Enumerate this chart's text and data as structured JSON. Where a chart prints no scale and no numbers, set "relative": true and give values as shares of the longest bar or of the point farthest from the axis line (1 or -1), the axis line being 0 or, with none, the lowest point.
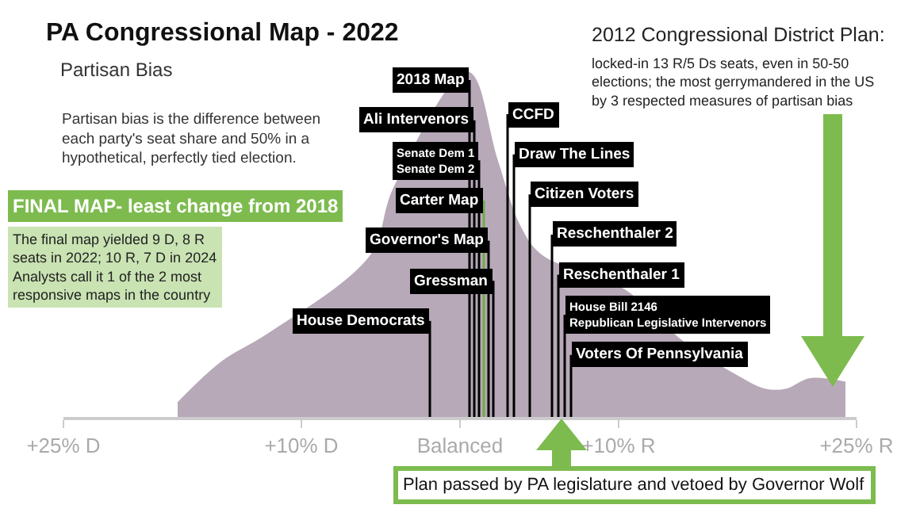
{
  "chart_data": {
    "type": "area",
    "title": "PA Congressional Map - 2022",
    "subtitle": "Partisan Bias",
    "relative": true,
    "x": [
      -17.8,
      -15.0,
      -12.1,
      -8.4,
      -5.6,
      -4.2,
      -2.8,
      -0.9,
      0.5,
      2.3,
      3.7,
      5.1,
      6.5,
      8.4,
      10.3,
      12.1,
      14.0,
      15.9,
      17.8,
      19.2,
      20.6,
      22.0,
      23.4,
      24.3
    ],
    "series": [
      {
        "color": "#b7a9b8",
        "values": [
          0.04,
          0.16,
          0.24,
          null,
          0.47,
          0.66,
          null,
          null,
          1,
          0.75,
          0.56,
          0.47,
          null,
          null,
          0.37,
          null,
          0.22,
          null,
          0.11,
          0.08,
          0.08,
          0.11,
          null,
          0.1
        ]
      }
    ],
    "xlim": [
      -25,
      25
    ],
    "xticks": [
      {
        "value": -25,
        "label": "+25% D"
      },
      {
        "value": -10,
        "label": "+10% D"
      },
      {
        "value": 0,
        "label": "Balanced"
      },
      {
        "value": 10,
        "label": "+10% R"
      },
      {
        "value": 25,
        "label": "+25% R"
      }
    ],
    "ref_lines": [
      {
        "axis": "x",
        "value": 0.6,
        "label": "2018 Map",
        "color": "#000000"
      },
      {
        "axis": "x",
        "value": 0.9,
        "label": "Ali Intervenors",
        "color": "#000000"
      },
      {
        "axis": "x",
        "value": 1.2,
        "label": "Senate Dem 1\nSenate Dem 2",
        "color": "#000000"
      },
      {
        "axis": "x",
        "value": 1.5,
        "label": "Carter Map",
        "color": "#70ad47"
      },
      {
        "axis": "x",
        "value": 1.8,
        "label": "Governor's Map",
        "color": "#000000"
      },
      {
        "axis": "x",
        "value": 2.1,
        "label": "Gressman",
        "color": "#000000"
      },
      {
        "axis": "x",
        "value": -1.9,
        "label": "House Democrats",
        "color": "#000000"
      },
      {
        "axis": "x",
        "value": 3.0,
        "label": "CCFD",
        "color": "#000000"
      },
      {
        "axis": "x",
        "value": 3.4,
        "label": "Draw The Lines",
        "color": "#000000"
      },
      {
        "axis": "x",
        "value": 4.4,
        "label": "Citizen Voters",
        "color": "#000000"
      },
      {
        "axis": "x",
        "value": 5.8,
        "label": "Reschenthaler 2",
        "color": "#000000"
      },
      {
        "axis": "x",
        "value": 6.2,
        "label": "Reschenthaler 1",
        "color": "#000000"
      },
      {
        "axis": "x",
        "value": 6.6,
        "label": "House Bill 2146\nRepublican Legislative Intervenors",
        "color": "#000000"
      },
      {
        "axis": "x",
        "value": 7.0,
        "label": "Voters Of Pennsylvania",
        "color": "#000000"
      }
    ],
    "annotations": [
      "Partisan bias is the difference between\neach party's seat share and 50% in a\nhypothetical, perfectly tied election.",
      "FINAL MAP- least change from 2018",
      "The final map yielded 9 D, 8 R\nseats in 2022; 10 R, 7 D in 2024\nAnalysts call it 1 of the 2 most\nresponsive maps in the country",
      "2012 Congressional District Plan:",
      "locked-in 13 R/5 Ds seats, even in 50-50\nelections; the most gerrymandered in the US\nby 3 respected measures of partisan bias",
      "Plan passed by PA legislature and vetoed by Governor Wolf"
    ]
  }
}
